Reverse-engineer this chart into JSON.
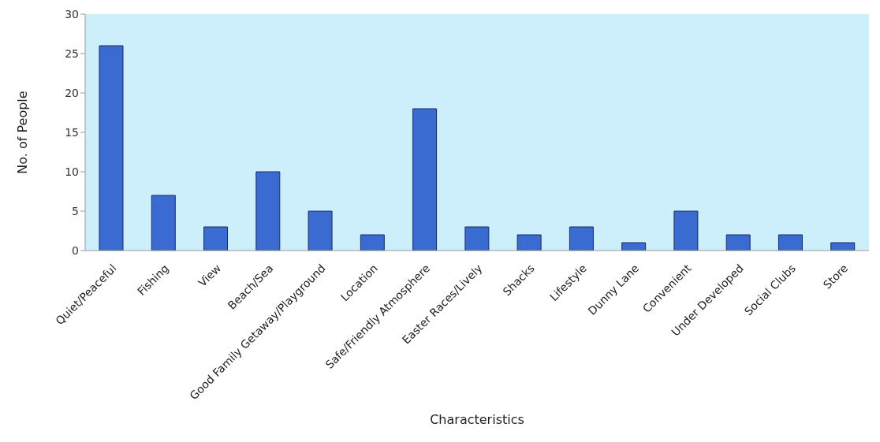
{
  "chart_data": {
    "type": "bar",
    "xlabel": "Characteristics",
    "ylabel": "No. of People",
    "categories": [
      "Quiet/Peaceful",
      "Fishing",
      "View",
      "Beach/Sea",
      "Good Family Getaway/Playground",
      "Location",
      "Safe/Friendly Atmosphere",
      "Easter Races/Lively",
      "Shacks",
      "Lifestyle",
      "Dunny Lane",
      "Convenient",
      "Under Developed",
      "Social Clubs",
      "Store"
    ],
    "values": [
      26,
      7,
      3,
      10,
      5,
      2,
      18,
      3,
      2,
      3,
      1,
      5,
      2,
      2,
      1
    ],
    "color": "#3a6bd0",
    "ylim": [
      0,
      30
    ],
    "yticks": [
      0,
      5,
      10,
      15,
      20,
      25,
      30
    ],
    "grid": false
  }
}
